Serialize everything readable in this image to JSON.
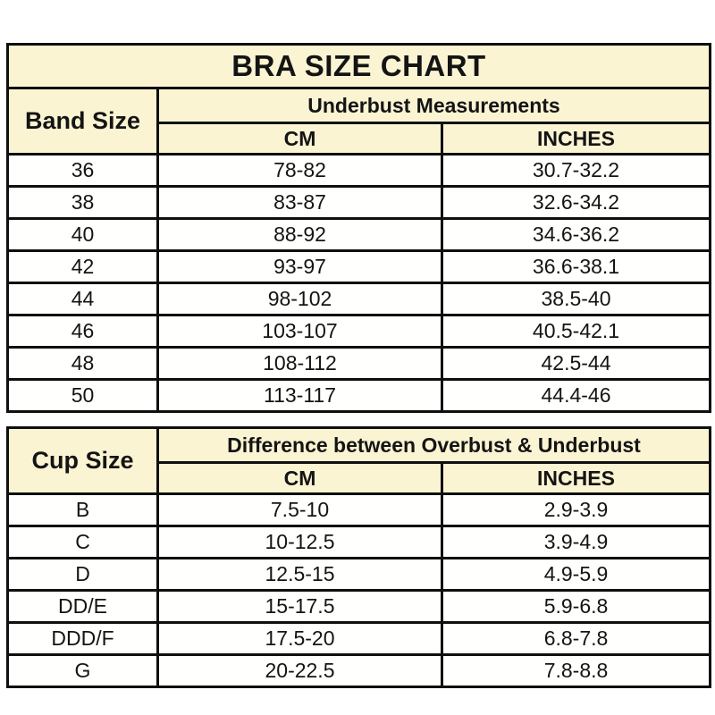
{
  "page_title": "BRA SIZE CHART",
  "colors": {
    "header_background": "#fbf4d3",
    "border": "#0f0f0f",
    "text": "#141414",
    "row_background": "#fffffd"
  },
  "chart_data": [
    {
      "type": "table",
      "title": "BRA SIZE CHART",
      "corner_header": "Band Size",
      "group_header": "Underbust Measurements",
      "columns": [
        "CM",
        "INCHES"
      ],
      "rows": [
        [
          "36",
          "78-82",
          "30.7-32.2"
        ],
        [
          "38",
          "83-87",
          "32.6-34.2"
        ],
        [
          "40",
          "88-92",
          "34.6-36.2"
        ],
        [
          "42",
          "93-97",
          "36.6-38.1"
        ],
        [
          "44",
          "98-102",
          "38.5-40"
        ],
        [
          "46",
          "103-107",
          "40.5-42.1"
        ],
        [
          "48",
          "108-112",
          "42.5-44"
        ],
        [
          "50",
          "113-117",
          "44.4-46"
        ]
      ]
    },
    {
      "type": "table",
      "corner_header": "Cup Size",
      "group_header": "Difference between Overbust & Underbust",
      "columns": [
        "CM",
        "INCHES"
      ],
      "rows": [
        [
          "B",
          "7.5-10",
          "2.9-3.9"
        ],
        [
          "C",
          "10-12.5",
          "3.9-4.9"
        ],
        [
          "D",
          "12.5-15",
          "4.9-5.9"
        ],
        [
          "DD/E",
          "15-17.5",
          "5.9-6.8"
        ],
        [
          "DDD/F",
          "17.5-20",
          "6.8-7.8"
        ],
        [
          "G",
          "20-22.5",
          "7.8-8.8"
        ]
      ]
    }
  ]
}
